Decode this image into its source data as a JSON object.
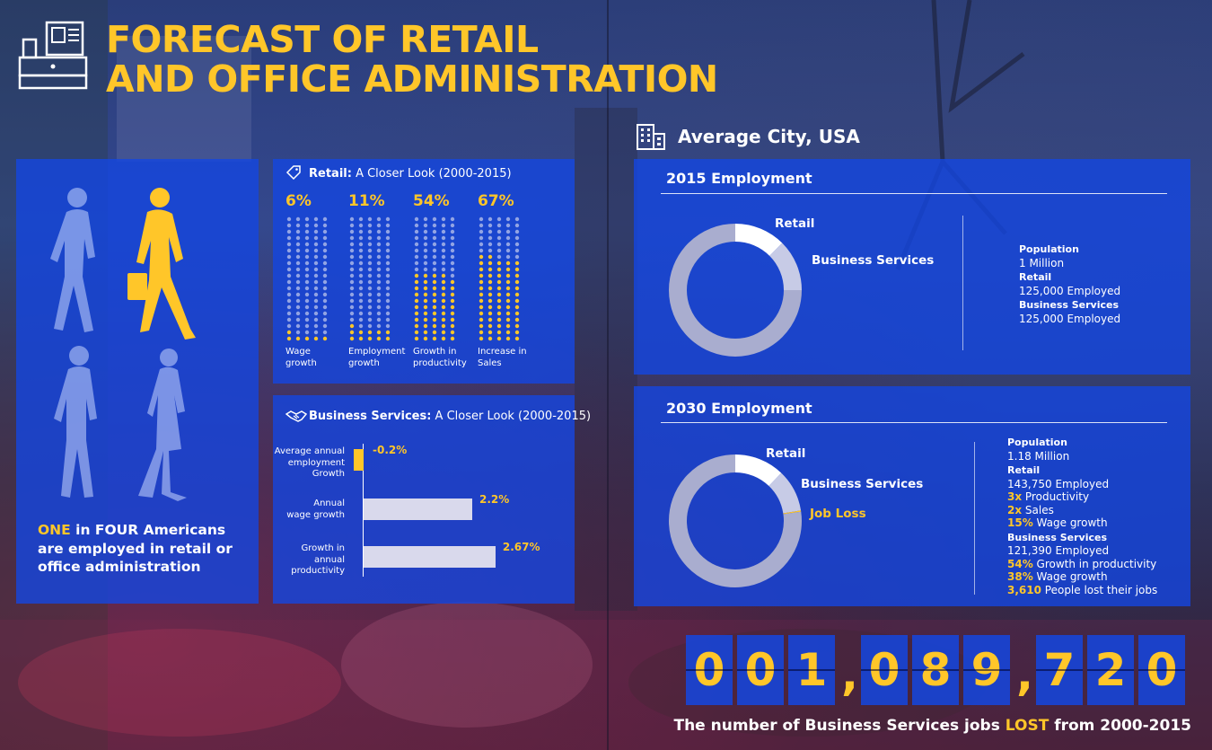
{
  "header": {
    "title_line1": "FORECAST OF RETAIL",
    "title_line2": "AND OFFICE ADMINISTRATION",
    "icon": "cash-register-icon"
  },
  "colors": {
    "accent": "#ffc629",
    "panel": "#1446e1",
    "bar": "#d9d9ec"
  },
  "people": {
    "icon": "walking-people-icon",
    "statement": {
      "highlight": "ONE",
      "text": " in FOUR Americans are employed in retail or office administration"
    }
  },
  "retail_closer_look": {
    "icon": "price-tag-icon",
    "title_bold": "Retail:",
    "title_rest": " A Closer Look (2000-2015)",
    "columns": [
      {
        "value": "6%",
        "label_1": "Wage",
        "label_2": "growth",
        "fraction": 0.06
      },
      {
        "value": "11%",
        "label_1": "Employment",
        "label_2": "growth",
        "fraction": 0.11
      },
      {
        "value": "54%",
        "label_1": "Growth in",
        "label_2": "productivity",
        "fraction": 0.54
      },
      {
        "value": "67%",
        "label_1": "Increase in",
        "label_2": "Sales",
        "fraction": 0.67
      }
    ]
  },
  "business_services_closer_look": {
    "icon": "handshake-icon",
    "title_bold": "Business Services:",
    "title_rest": " A Closer Look (2000-2015)",
    "bars": [
      {
        "label_lines": [
          "Average annual",
          "employment",
          "Growth"
        ],
        "value_label": "-0.2%",
        "value": -0.2
      },
      {
        "label_lines": [
          "Annual",
          "wage growth"
        ],
        "value_label": "2.2%",
        "value": 2.2
      },
      {
        "label_lines": [
          "Growth in",
          "annual",
          "productivity"
        ],
        "value_label": "2.67%",
        "value": 2.67
      }
    ]
  },
  "city": {
    "icon": "office-building-icon",
    "title": "Average City, USA",
    "employment_2015": {
      "title": "2015 Employment",
      "donut_labels": {
        "retail": "Retail",
        "business": "Business Services"
      },
      "shares": {
        "retail": 125000,
        "business": 125000,
        "other": 750000
      },
      "stats": {
        "population_h": "Population",
        "population": "1 Million",
        "retail_h": "Retail",
        "retail": "125,000 Employed",
        "business_h": "Business Services",
        "business": "125,000 Employed"
      }
    },
    "employment_2030": {
      "title": "2030 Employment",
      "donut_labels": {
        "retail": "Retail",
        "business": "Business Services",
        "loss": "Job Loss"
      },
      "shares": {
        "retail": 143750,
        "business": 121390,
        "loss": 3610,
        "other": 911250
      },
      "stats": {
        "population_h": "Population",
        "population": "1.18 Million",
        "retail_h": "Retail",
        "retail": "143,750 Employed",
        "r1_v": "3x",
        "r1_t": " Productivity",
        "r2_v": "2x",
        "r2_t": " Sales",
        "r3_v": "15%",
        "r3_t": " Wage growth",
        "business_h": "Business Services",
        "business": "121,390 Employed",
        "b1_v": "54%",
        "b1_t": " Growth in productivity",
        "b2_v": "38%",
        "b2_t": " Wage growth",
        "b3_v": "3,610",
        "b3_t": " People lost their jobs"
      }
    }
  },
  "counter": {
    "digits": [
      "0",
      "0",
      "1",
      "0",
      "8",
      "9",
      "7",
      "2",
      "0"
    ],
    "separator": ",",
    "caption_pre": "The number of Business Services jobs ",
    "caption_hl": "LOST",
    "caption_post": " from 2000-2015"
  }
}
